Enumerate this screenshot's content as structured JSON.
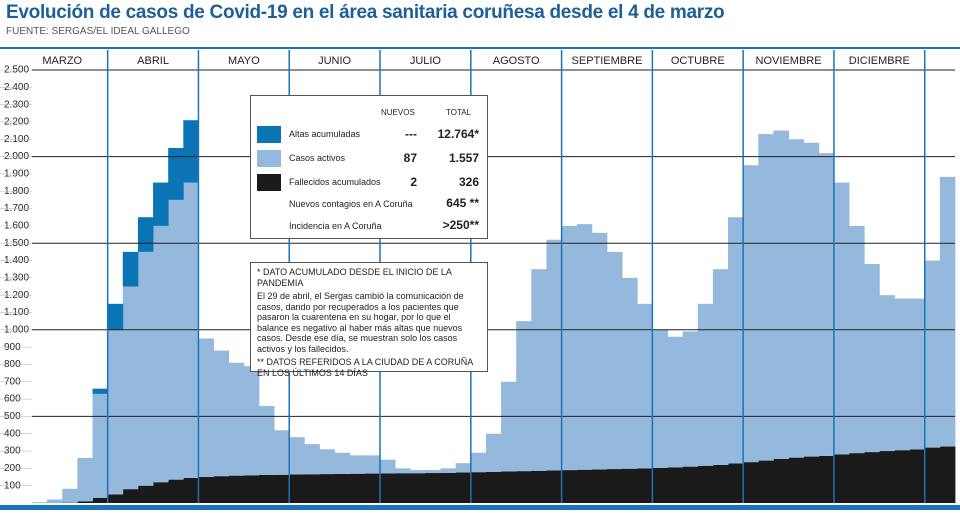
{
  "chart_data": {
    "type": "bar",
    "stacked": true,
    "title": "Evolución de casos de Covid-19 en el área sanitaria coruñesa desde el 4 de marzo",
    "subtitle": "FUENTE: SERGAS/EL IDEAL GALLEGO",
    "categories": [
      null,
      null,
      "MARZO",
      null,
      null,
      null,
      null,
      null,
      "ABRIL",
      null,
      null,
      null,
      null,
      null,
      "MAYO",
      null,
      null,
      null,
      null,
      null,
      "JUNIO",
      null,
      null,
      null,
      null,
      null,
      "JULIO",
      null,
      null,
      null,
      null,
      null,
      "AGOSTO",
      null,
      null,
      null,
      null,
      null,
      "SEPTIEMBRE",
      null,
      null,
      null,
      null,
      null,
      "OCTUBRE",
      null,
      null,
      null,
      null,
      null,
      "NOVIEMBRE",
      null,
      null,
      null,
      null,
      null,
      "DICIEMBRE",
      null,
      null,
      null,
      null
    ],
    "series": [
      {
        "name": "Altas acumuladas",
        "color": "#0b74b5",
        "values": [
          0,
          0,
          0,
          0,
          30,
          150,
          200,
          200,
          250,
          300,
          360,
          null,
          null,
          null,
          null,
          null,
          null,
          null,
          null,
          null,
          null,
          null,
          null,
          null,
          null,
          null,
          null,
          null,
          null,
          null,
          null,
          null,
          null,
          null,
          null,
          null,
          null,
          null,
          null,
          null,
          null,
          null,
          null,
          null,
          null,
          null,
          null,
          null,
          null,
          null,
          null,
          null,
          null,
          null,
          null,
          null,
          null,
          null,
          null,
          null,
          null
        ]
      },
      {
        "name": "Casos activos",
        "color": "#94b9dc",
        "values": [
          5,
          20,
          80,
          250,
          600,
          950,
          1170,
          1350,
          1480,
          1615,
          1705,
          800,
          725,
          652,
          630,
          398,
          257,
          215,
          174,
          143,
          122,
          106,
          105,
          79,
          28,
          18,
          17,
          26,
          54,
          112,
          220,
          518,
          866,
          1164,
          1332,
          1410,
          1418,
          1366,
          1254,
          1102,
          950,
          797,
          754,
          780,
          935,
          1130,
          1422,
          1714,
          1885,
          1895,
          1838,
          1812,
          1748,
          1570,
          1312,
          1086,
          900,
          875,
          870,
          1080,
          1557
        ]
      },
      {
        "name": "Fallecidos acumulados",
        "color": "#1a1a1a",
        "values": [
          0,
          0,
          2,
          10,
          30,
          50,
          80,
          100,
          120,
          135,
          145,
          150,
          155,
          158,
          160,
          162,
          163,
          165,
          166,
          167,
          168,
          169,
          170,
          171,
          172,
          172,
          173,
          174,
          176,
          178,
          180,
          182,
          184,
          186,
          188,
          190,
          192,
          194,
          196,
          198,
          200,
          203,
          206,
          210,
          215,
          220,
          228,
          236,
          245,
          255,
          262,
          268,
          272,
          280,
          288,
          294,
          300,
          305,
          310,
          320,
          326
        ]
      }
    ],
    "ylim": [
      0,
      2500
    ],
    "yticks": [
      {
        "value": 2500,
        "label": "2.500"
      },
      {
        "value": 2400,
        "label": "2.400"
      },
      {
        "value": 2300,
        "label": "2.300"
      },
      {
        "value": 2200,
        "label": "2.200"
      },
      {
        "value": 2100,
        "label": "2.100"
      },
      {
        "value": 2000,
        "label": "2.000"
      },
      {
        "value": 1900,
        "label": "1.900"
      },
      {
        "value": 1800,
        "label": "1.800"
      },
      {
        "value": 1700,
        "label": "1.700"
      },
      {
        "value": 1600,
        "label": "1.600"
      },
      {
        "value": 1500,
        "label": "1.500"
      },
      {
        "value": 1400,
        "label": "1.400"
      },
      {
        "value": 1300,
        "label": "1.300"
      },
      {
        "value": 1200,
        "label": "1.200"
      },
      {
        "value": 1100,
        "label": "1.100"
      },
      {
        "value": 1000,
        "label": "1.000"
      },
      900,
      800,
      700,
      600,
      500,
      400,
      300,
      200,
      100
    ],
    "grid": true,
    "summary": {
      "headers": [
        "NUEVOS",
        "TOTAL"
      ],
      "rows": [
        [
          "---",
          "12.764*"
        ],
        [
          "87",
          "1.557"
        ],
        [
          "2",
          "326"
        ]
      ],
      "extra_rows": [
        [
          "Nuevos contagios en A Coruña",
          "645 **"
        ],
        [
          "Incidencia en A Coruña",
          ">250**"
        ]
      ]
    },
    "notes": [
      "* DATO ACUMULADO DESDE EL INICIO DE LA PANDEMIA",
      "El 29 de abril, el Sergas cambió la comunicación de casos, dando por recuperados a los pacientes que pasaron la cuarentena en su hogar, por lo que el balance es negativo al haber más altas que nuevos casos. Desde ese día, se muestran solo los casos activos y los fallecidos.",
      "** DATOS REFERIDOS A LA CIUDAD DE A CORUÑA EN LOS ÚLTIMOS 14 DÍAS"
    ]
  }
}
